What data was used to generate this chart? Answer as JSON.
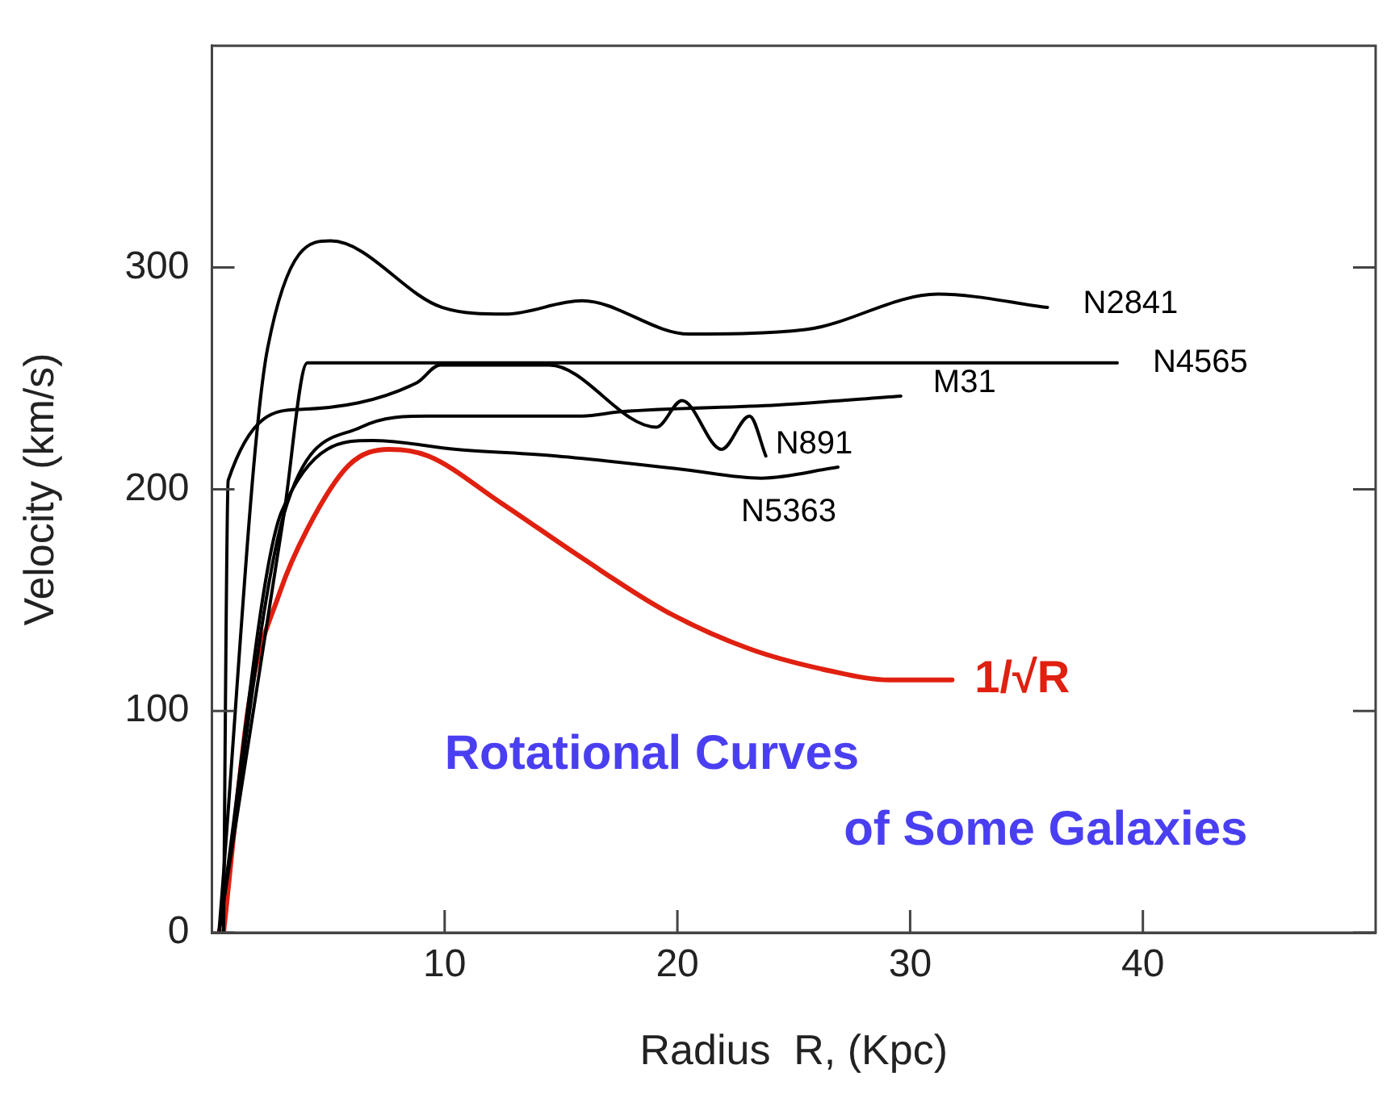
{
  "chart_data": {
    "type": "line",
    "xlabel": "Radius  R, (Kpc)",
    "ylabel": "Velocity (km/s)",
    "xlim": [
      0,
      50
    ],
    "xticks": [
      10,
      20,
      30,
      40
    ],
    "ylim": [
      0,
      400
    ],
    "yticks": [
      0,
      100,
      200,
      300
    ],
    "grid": false,
    "legend": false,
    "marker": "none",
    "line_style": "solid",
    "annotations": [
      "Rotational Curves\nof Some Galaxies"
    ],
    "series": [
      {
        "name": "N2841",
        "color": "#000000",
        "x": [
          0.3,
          2.4,
          5.1,
          9.9,
          12.6,
          15.9,
          20.5,
          25.5,
          31.2,
          35.9
        ],
        "values": [
          0,
          264,
          312,
          282,
          279,
          285,
          270,
          272,
          288,
          282
        ]
      },
      {
        "name": "N4565",
        "color": "#000000",
        "x": [
          0.3,
          3.1,
          4.1,
          38.9
        ],
        "values": [
          0,
          189,
          257,
          257
        ]
      },
      {
        "name": "M31",
        "color": "#000000",
        "x": [
          0.3,
          3.1,
          6.4,
          9.3,
          15.9,
          17.6,
          24.3,
          29.6
        ],
        "values": [
          0,
          189,
          228,
          233,
          233,
          235,
          238,
          242
        ]
      },
      {
        "name": "N891",
        "color": "#000000",
        "x": [
          0.5,
          0.7,
          3.8,
          8.8,
          9.8,
          14.5,
          19.1,
          20.2,
          21.9,
          23.1,
          23.8
        ],
        "values": [
          0,
          204,
          236,
          248,
          256,
          256,
          228,
          240,
          218,
          233,
          215
        ]
      },
      {
        "name": "N5363",
        "color": "#000000",
        "x": [
          0.3,
          3.0,
          6.9,
          10.5,
          14.8,
          20.2,
          23.6,
          26.9
        ],
        "values": [
          0,
          190,
          222,
          218,
          215,
          209,
          205,
          210
        ]
      },
      {
        "name": "1/√R",
        "color": "#e02010",
        "x": [
          0.5,
          1.6,
          2.9,
          4.1,
          5.9,
          7.6,
          9.3,
          12.4,
          15.9,
          19.5,
          23.1,
          26.6,
          29.1,
          31.8
        ],
        "values": [
          0,
          104,
          153,
          182,
          211,
          218,
          215,
          194,
          169,
          145,
          128,
          118,
          114,
          114
        ]
      }
    ]
  }
}
